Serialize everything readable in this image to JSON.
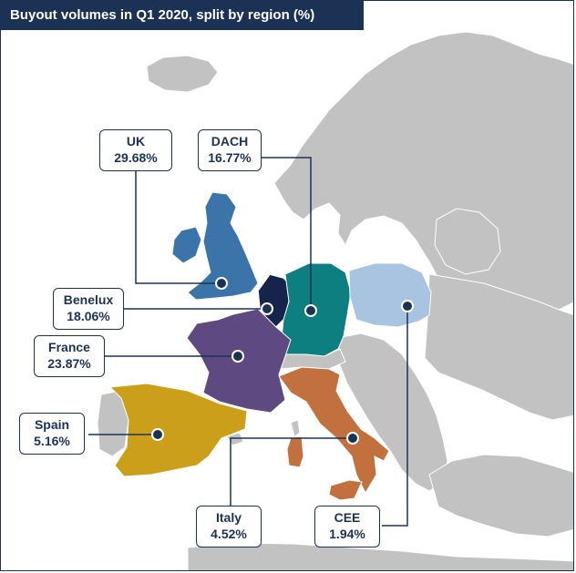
{
  "title": "Buyout volumes in Q1 2020, split by region (%)",
  "colors": {
    "navy": "#1c3254",
    "uk": "#3a74a8",
    "benelux": "#15244a",
    "dach": "#0e7f80",
    "cee": "#a9c4e0",
    "france": "#5e4a80",
    "spain": "#cc9f1a",
    "italy": "#c2703e",
    "land": "#c2c2c2",
    "sea": "#ffffff"
  },
  "regions": {
    "uk": {
      "name": "UK",
      "value": "29.68%"
    },
    "dach": {
      "name": "DACH",
      "value": "16.77%"
    },
    "benelux": {
      "name": "Benelux",
      "value": "18.06%"
    },
    "france": {
      "name": "France",
      "value": "23.87%"
    },
    "spain": {
      "name": "Spain",
      "value": "5.16%"
    },
    "italy": {
      "name": "Italy",
      "value": "4.52%"
    },
    "cee": {
      "name": "CEE",
      "value": "1.94%"
    }
  }
}
